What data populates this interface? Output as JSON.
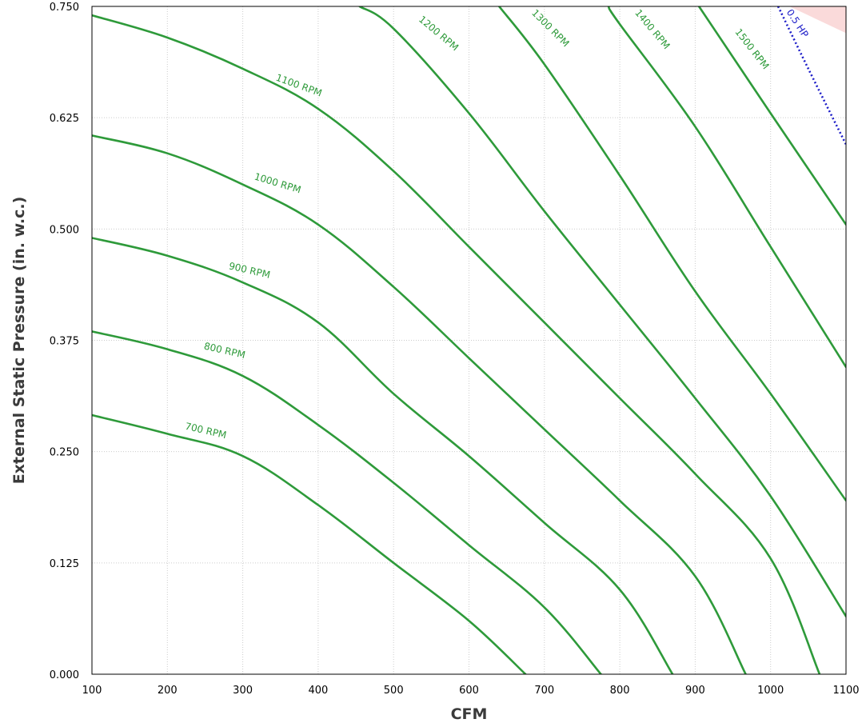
{
  "chart_data": {
    "type": "line",
    "title": "",
    "xlabel": "CFM",
    "ylabel": "External Static Pressure (in. w.c.)",
    "xlim": [
      100,
      1100
    ],
    "ylim": [
      0,
      0.75
    ],
    "xticks": [
      100,
      200,
      300,
      400,
      500,
      600,
      700,
      800,
      900,
      1000,
      1100
    ],
    "xtick_labels": [
      "100",
      "200",
      "300",
      "400",
      "500",
      "600",
      "700",
      "800",
      "900",
      "1000",
      "1100"
    ],
    "yticks": [
      0,
      0.125,
      0.25,
      0.375,
      0.5,
      0.625,
      0.75
    ],
    "ytick_labels": [
      "0.000",
      "0.125",
      "0.250",
      "0.375",
      "0.500",
      "0.625",
      "0.750"
    ],
    "grid": true,
    "colors": {
      "rpm_curve": "#2e9a3a",
      "rpm_label": "#2e9a3a",
      "hp_curve": "#1c1cc8",
      "shaded_region": "#fadada",
      "grid": "#cccccc",
      "frame": "#000000"
    },
    "shaded_region": {
      "points": [
        [
          1025,
          0.75
        ],
        [
          1100,
          0.75
        ],
        [
          1100,
          0.72
        ]
      ]
    },
    "series": [
      {
        "name": "700 RPM",
        "x": [
          100,
          200,
          300,
          400,
          500,
          600,
          675
        ],
        "y": [
          0.291,
          0.27,
          0.245,
          0.19,
          0.125,
          0.06,
          0.0
        ],
        "label_at": [
          250,
          0.27
        ],
        "label_angle": 13
      },
      {
        "name": "800 RPM",
        "x": [
          100,
          200,
          300,
          400,
          500,
          600,
          700,
          775
        ],
        "y": [
          0.385,
          0.365,
          0.335,
          0.28,
          0.215,
          0.145,
          0.075,
          0.0
        ],
        "label_at": [
          275,
          0.36
        ],
        "label_angle": 13
      },
      {
        "name": "900 RPM",
        "x": [
          100,
          200,
          300,
          400,
          500,
          600,
          700,
          800,
          870
        ],
        "y": [
          0.49,
          0.47,
          0.44,
          0.395,
          0.315,
          0.245,
          0.17,
          0.095,
          0.0
        ],
        "label_at": [
          308,
          0.45
        ],
        "label_angle": 13
      },
      {
        "name": "1000 RPM",
        "x": [
          100,
          200,
          300,
          400,
          500,
          600,
          700,
          800,
          900,
          967
        ],
        "y": [
          0.605,
          0.585,
          0.55,
          0.505,
          0.435,
          0.355,
          0.275,
          0.195,
          0.11,
          0.0
        ],
        "label_at": [
          345,
          0.548
        ],
        "label_angle": 17
      },
      {
        "name": "1100 RPM",
        "x": [
          100,
          200,
          300,
          400,
          500,
          600,
          700,
          800,
          900,
          1000,
          1065
        ],
        "y": [
          0.74,
          0.715,
          0.68,
          0.635,
          0.565,
          0.48,
          0.395,
          0.31,
          0.225,
          0.13,
          0.0
        ],
        "label_at": [
          373,
          0.658
        ],
        "label_angle": 20
      },
      {
        "name": "1200 RPM",
        "x": [
          455,
          500,
          600,
          700,
          800,
          900,
          1000,
          1100
        ],
        "y": [
          0.75,
          0.725,
          0.63,
          0.52,
          0.415,
          0.31,
          0.2,
          0.065
        ],
        "label_at": [
          557,
          0.717
        ],
        "label_angle": 40
      },
      {
        "name": "1300 RPM",
        "x": [
          640,
          700,
          800,
          900,
          1000,
          1100
        ],
        "y": [
          0.75,
          0.685,
          0.56,
          0.43,
          0.315,
          0.195
        ],
        "label_at": [
          705,
          0.723
        ],
        "label_angle": 45
      },
      {
        "name": "1400 RPM",
        "x": [
          785,
          800,
          900,
          1000,
          1100
        ],
        "y": [
          0.75,
          0.73,
          0.615,
          0.48,
          0.345
        ],
        "label_at": [
          840,
          0.722
        ],
        "label_angle": 50
      },
      {
        "name": "1500 RPM",
        "x": [
          905,
          1000,
          1100
        ],
        "y": [
          0.75,
          0.63,
          0.505
        ],
        "label_at": [
          972,
          0.7
        ],
        "label_angle": 52
      }
    ],
    "hp_lines": [
      {
        "name": "0.5 HP",
        "x": [
          1010,
          1050,
          1100
        ],
        "y": [
          0.75,
          0.68,
          0.595
        ],
        "label_at": [
          1032,
          0.729
        ],
        "label_angle": 57
      }
    ]
  }
}
